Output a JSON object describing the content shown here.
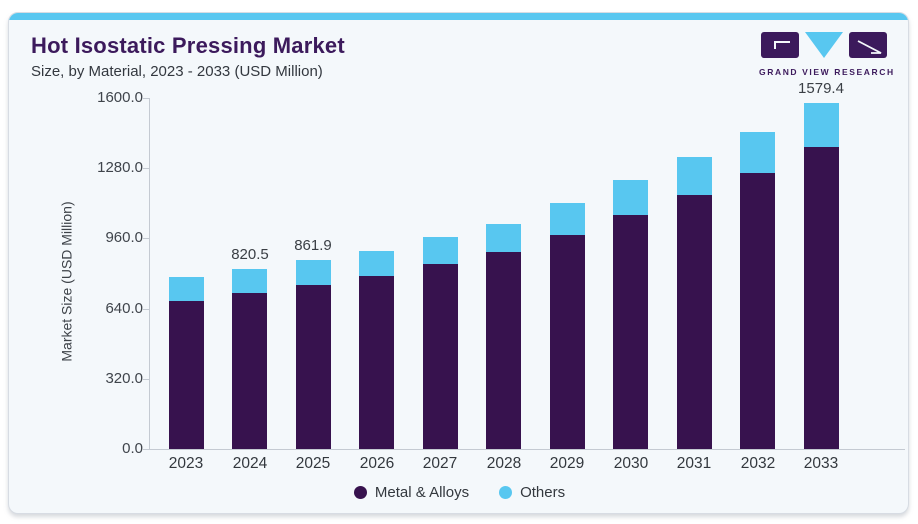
{
  "header": {
    "title": "Hot Isostatic Pressing Market",
    "subtitle": "Size, by Material, 2023 - 2033 (USD Million)",
    "logo_text": "GRAND VIEW RESEARCH"
  },
  "colors": {
    "accent": "#58c7f0",
    "brand_purple": "#3c1a5c",
    "card_bg": "#f4f8fb",
    "axis_gray": "#c4cad2",
    "text_dark": "#33383f"
  },
  "chart_data": {
    "type": "bar",
    "stacked": true,
    "title": "Hot Isostatic Pressing Market Size, by Material, 2023 - 2033 (USD Million)",
    "categories": [
      "2023",
      "2024",
      "2025",
      "2026",
      "2027",
      "2028",
      "2029",
      "2030",
      "2031",
      "2032",
      "2033"
    ],
    "series": [
      {
        "name": "Metal & Alloys",
        "color": "#37124e",
        "values": [
          675,
          712,
          747,
          790,
          845,
          896,
          976,
          1065,
          1157,
          1256,
          1375
        ]
      },
      {
        "name": "Others",
        "color": "#58c7f0",
        "values": [
          108,
          108.5,
          114.9,
          114,
          123,
          131,
          145,
          162,
          174,
          191,
          204.4
        ]
      }
    ],
    "totals": [
      783,
      820.5,
      861.9,
      904,
      968,
      1027,
      1121,
      1227,
      1331,
      1447,
      1579.4
    ],
    "shown_total_labels": [
      "",
      "820.5",
      "861.9",
      "",
      "",
      "",
      "",
      "",
      "",
      "",
      "1579.4"
    ],
    "ylabel": "Market Size (USD Million)",
    "yticks": [
      "0.0",
      "320.0",
      "640.0",
      "960.0",
      "1280.0",
      "1600.0"
    ],
    "ylim": [
      0,
      1600
    ],
    "grid": false,
    "legend_position": "bottom"
  }
}
